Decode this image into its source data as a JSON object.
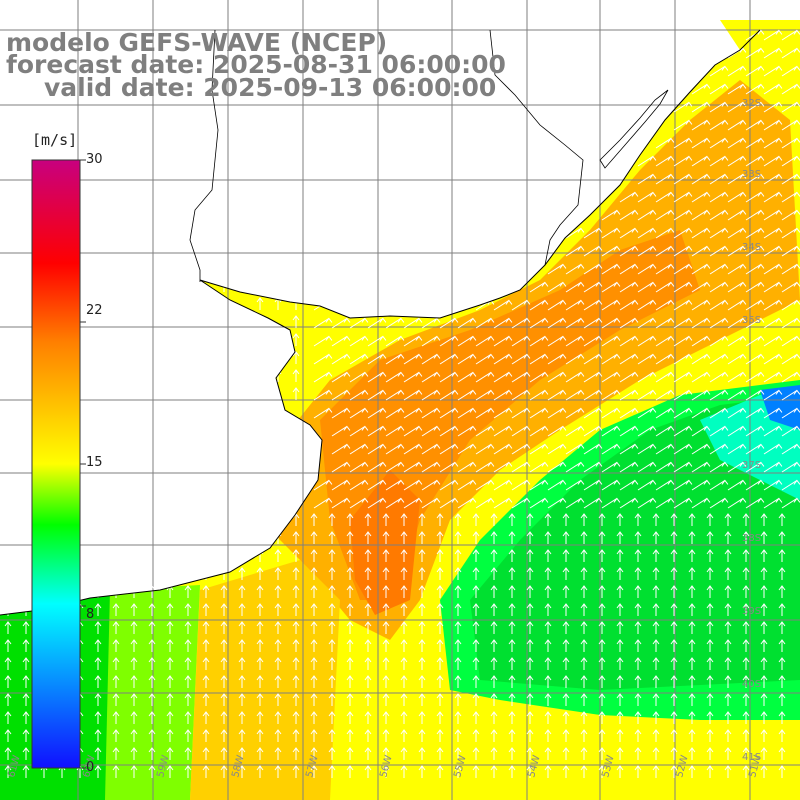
{
  "titles": {
    "model": "modelo GEFS-WAVE (NCEP)",
    "forecast": "forecast date: 2025-08-31 06:00:00",
    "valid": "valid date: 2025-09-13 06:00:00"
  },
  "colorbar": {
    "unit": "[m/s]",
    "ticks": [
      "30",
      "22",
      "15",
      "8",
      "0"
    ],
    "tick_values": [
      30,
      22,
      15,
      8,
      0
    ],
    "range": [
      0,
      30
    ],
    "colors": [
      "#1010ff",
      "#00ffff",
      "#00ff00",
      "#ffff00",
      "#ff8000",
      "#ff0000",
      "#c8007f"
    ]
  },
  "map": {
    "lat_labels": [
      "32S",
      "33S",
      "34S",
      "35S",
      "37S",
      "38S",
      "39S",
      "40S",
      "41S"
    ],
    "lon_labels": [
      "61W",
      "60W",
      "59W",
      "58W",
      "57W",
      "56W",
      "55W",
      "54W",
      "53W",
      "52W",
      "51W"
    ],
    "land_color": "#ffffff",
    "grid_color": "#7f7f7f",
    "coast_color": "#000000"
  }
}
